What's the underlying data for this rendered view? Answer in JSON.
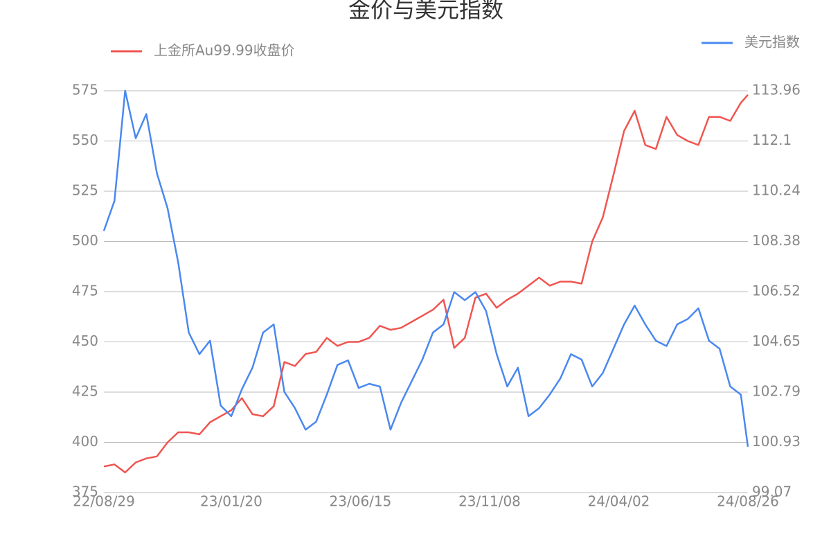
{
  "chart_data": {
    "type": "line",
    "title": "金价与美元指数",
    "x": [
      "22/08/29",
      "22/09/10",
      "22/09/22",
      "22/10/04",
      "22/10/16",
      "22/10/28",
      "22/11/09",
      "22/11/21",
      "22/12/03",
      "22/12/15",
      "22/12/27",
      "23/01/08",
      "23/01/20",
      "23/02/01",
      "23/02/13",
      "23/02/25",
      "23/03/09",
      "23/03/21",
      "23/04/02",
      "23/04/14",
      "23/04/26",
      "23/05/08",
      "23/05/20",
      "23/06/01",
      "23/06/13",
      "23/06/25",
      "23/07/07",
      "23/07/19",
      "23/07/31",
      "23/08/12",
      "23/08/24",
      "23/09/05",
      "23/09/17",
      "23/09/29",
      "23/10/11",
      "23/10/23",
      "23/11/04",
      "23/11/16",
      "23/11/28",
      "23/12/10",
      "23/12/22",
      "24/01/03",
      "24/01/15",
      "24/01/27",
      "24/02/08",
      "24/02/20",
      "24/03/03",
      "24/03/15",
      "24/03/27",
      "24/04/08",
      "24/04/20",
      "24/05/02",
      "24/05/14",
      "24/05/26",
      "24/06/07",
      "24/06/19",
      "24/07/01",
      "24/07/13",
      "24/07/25",
      "24/08/06",
      "24/08/18",
      "24/08/26"
    ],
    "xlim": [
      "22/08/29",
      "24/08/26"
    ],
    "xticks": [
      "22/08/29",
      "23/01/20",
      "23/06/15",
      "23/11/08",
      "24/04/02",
      "24/08/26"
    ],
    "ylim": [
      375,
      575
    ],
    "yticks": [
      375,
      400,
      425,
      450,
      475,
      500,
      525,
      550,
      575
    ],
    "y2lim": [
      99.07,
      113.96
    ],
    "y2ticks": [
      99.07,
      100.93,
      102.79,
      104.65,
      106.52,
      108.38,
      110.24,
      112.1,
      113.96
    ],
    "grid": true,
    "series": [
      {
        "name": "上金所Au99.99收盘价",
        "color": "#f05550",
        "values": [
          388,
          389,
          385,
          390,
          392,
          393,
          400,
          405,
          405,
          404,
          410,
          413,
          416,
          422,
          414,
          413,
          418,
          440,
          438,
          444,
          445,
          452,
          448,
          450,
          450,
          452,
          458,
          456,
          457,
          460,
          463,
          466,
          471,
          447,
          452,
          472,
          474,
          467,
          471,
          474,
          478,
          482,
          478,
          480,
          480,
          479,
          500,
          512,
          533,
          555,
          565,
          548,
          546,
          562,
          553,
          550,
          548,
          562,
          562,
          560,
          569,
          573
        ]
      },
      {
        "name": "美元指数",
        "color": "#4a88f0",
        "axis": "y2",
        "values": [
          108.77,
          109.88,
          113.96,
          112.2,
          113.1,
          110.9,
          109.6,
          107.6,
          105.0,
          104.2,
          104.7,
          102.3,
          101.9,
          102.9,
          103.7,
          105.0,
          105.3,
          102.8,
          102.2,
          101.4,
          101.7,
          102.7,
          103.8,
          103.97,
          102.95,
          103.1,
          103.0,
          101.4,
          102.4,
          103.2,
          104.0,
          105.0,
          105.3,
          106.5,
          106.2,
          106.5,
          105.8,
          104.2,
          103.0,
          103.7,
          101.9,
          102.2,
          102.7,
          103.3,
          104.2,
          104.0,
          103.0,
          103.5,
          104.4,
          105.3,
          106.0,
          105.3,
          104.7,
          104.5,
          105.3,
          105.5,
          105.9,
          104.7,
          104.4,
          103.0,
          102.7,
          100.77
        ]
      }
    ]
  }
}
